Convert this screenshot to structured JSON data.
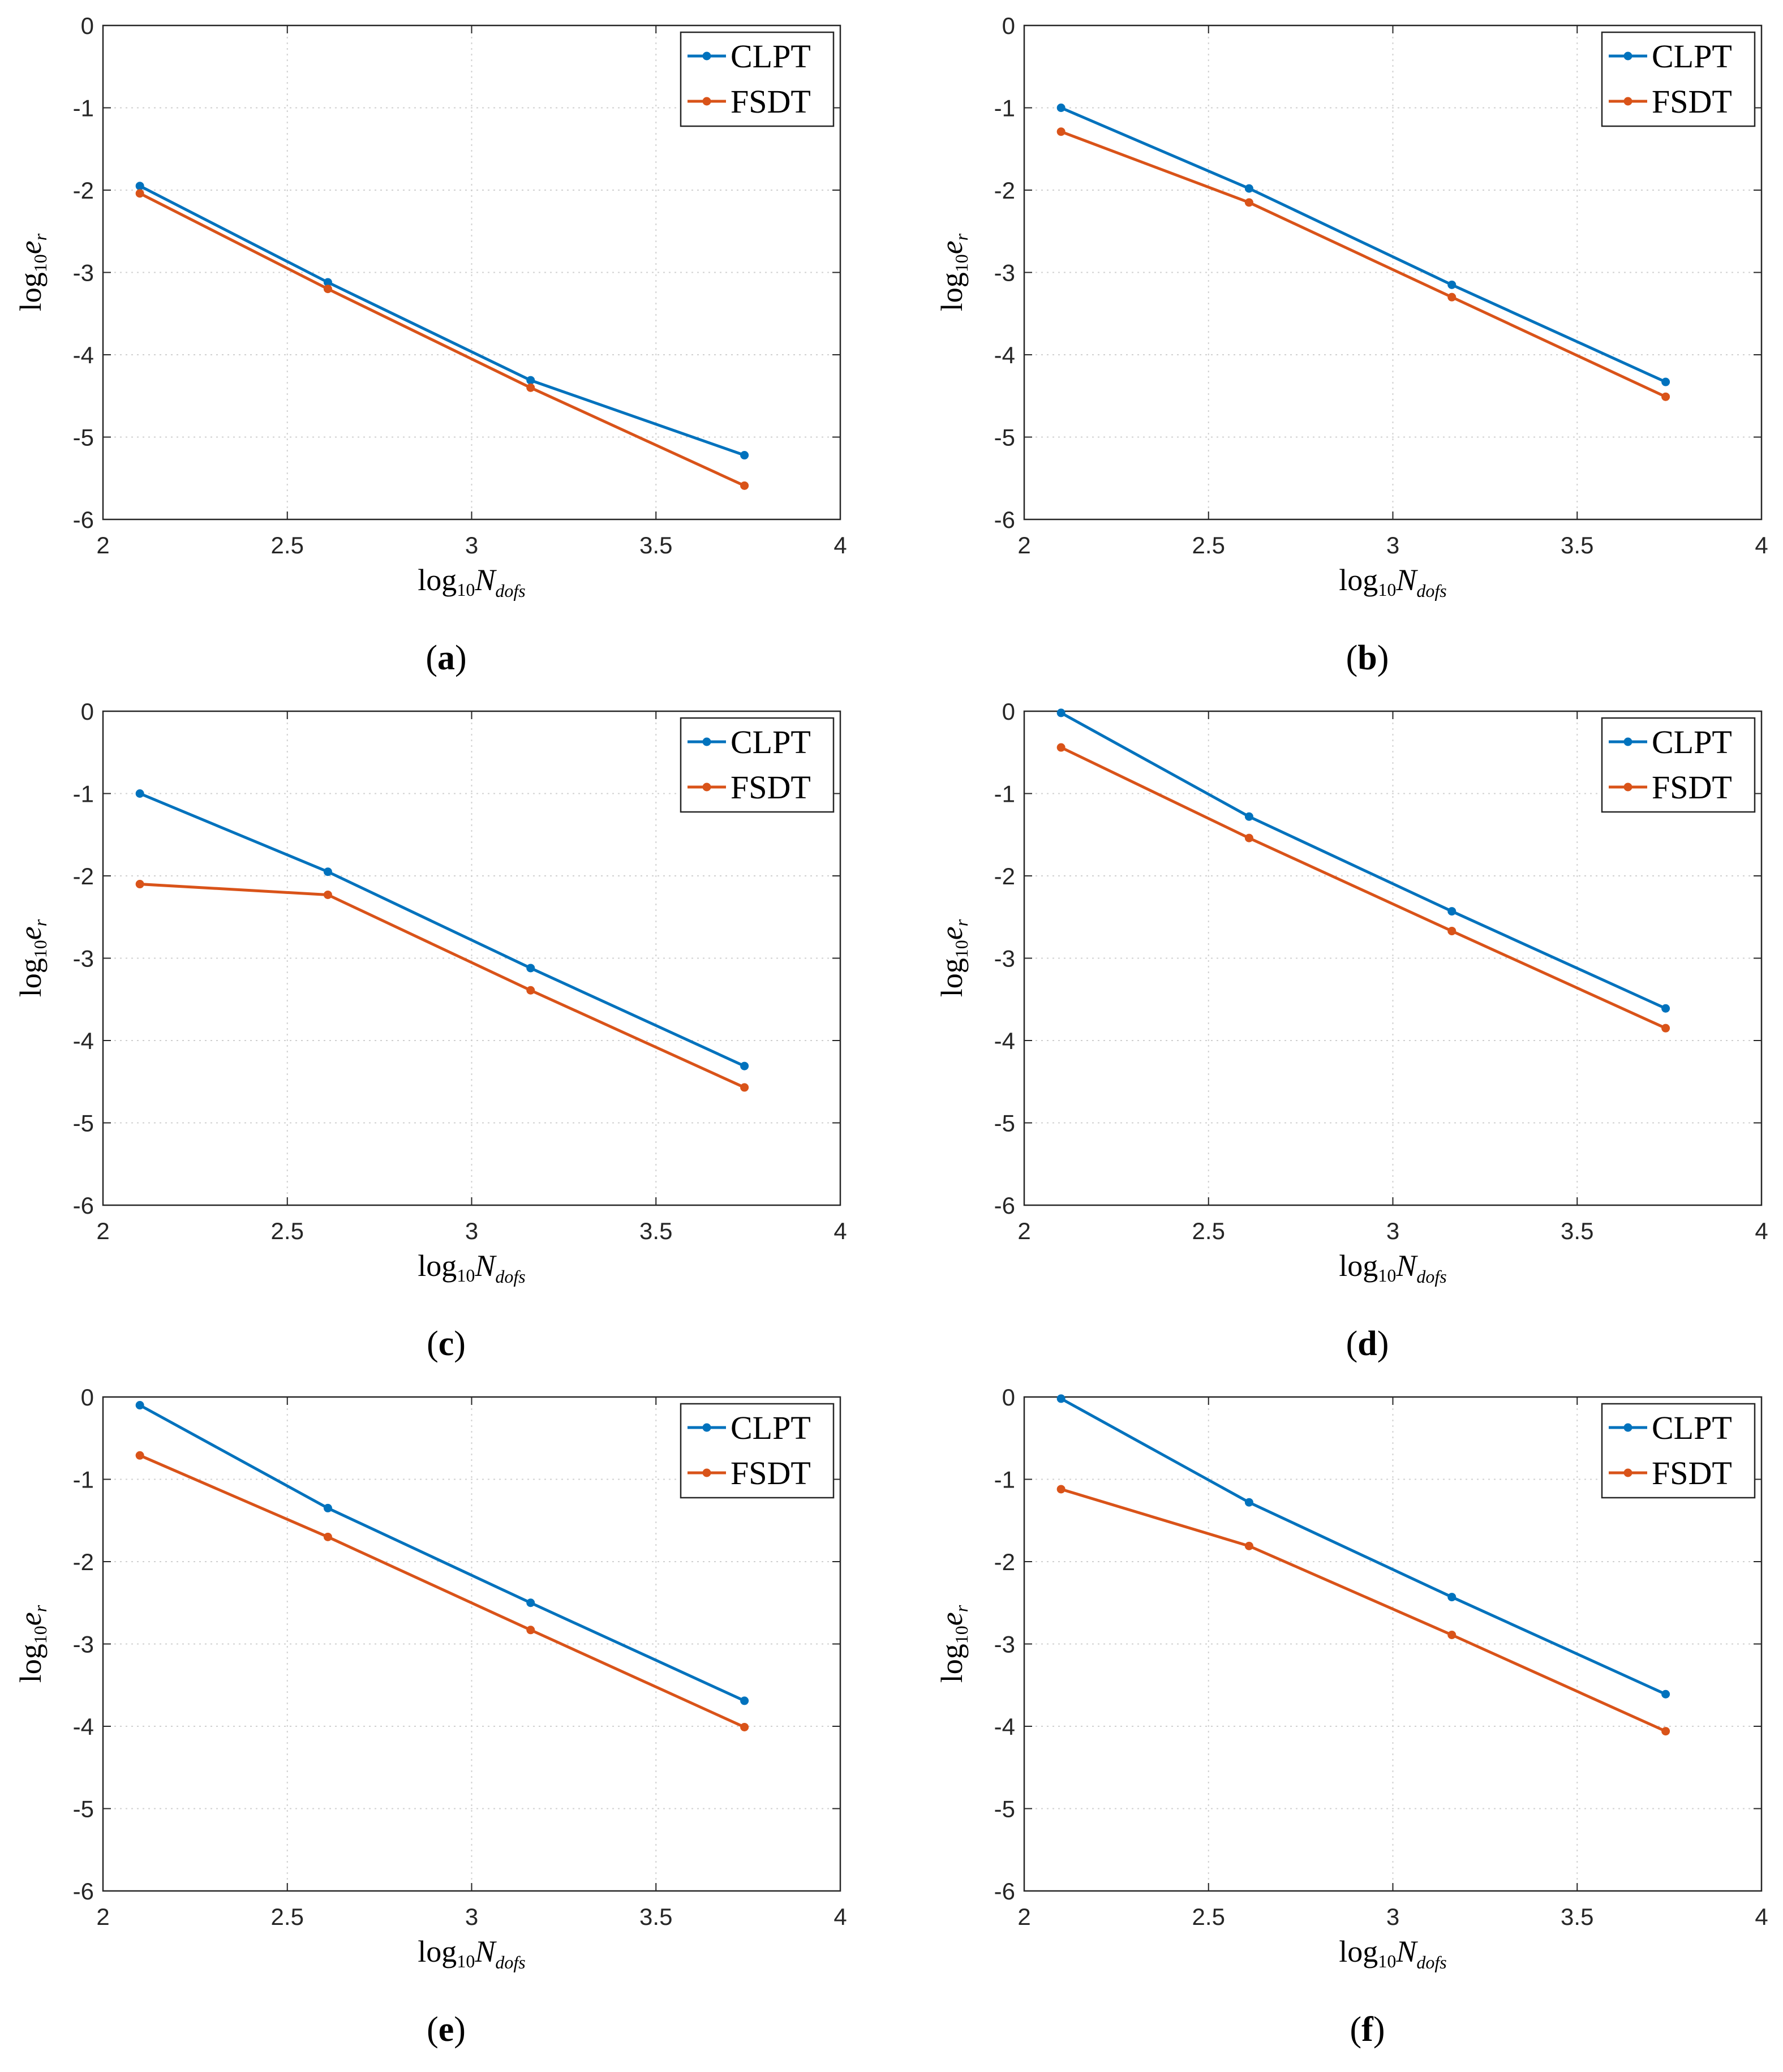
{
  "chart_data": [
    {
      "type": "line",
      "panel": "a",
      "xlabel": "log10 N_dofs",
      "ylabel": "log10 e_r",
      "xlim": [
        2,
        4
      ],
      "ylim": [
        -6,
        0
      ],
      "xticks": [
        "2",
        "2.5",
        "3",
        "3.5",
        "4"
      ],
      "yticks": [
        "0",
        "-1",
        "-2",
        "-3",
        "-4",
        "-5",
        "-6"
      ],
      "grid": true,
      "legend": "top-right",
      "x": [
        2.1,
        2.61,
        3.16,
        3.74
      ],
      "series": [
        {
          "name": "CLPT",
          "color": "#0072BD",
          "values": [
            -1.95,
            -3.12,
            -4.31,
            -5.22
          ]
        },
        {
          "name": "FSDT",
          "color": "#D95319",
          "values": [
            -2.04,
            -3.2,
            -4.4,
            -5.59
          ]
        }
      ]
    },
    {
      "type": "line",
      "panel": "b",
      "xlabel": "log10 N_dofs",
      "ylabel": "log10 e_r",
      "xlim": [
        2,
        4
      ],
      "ylim": [
        -6,
        0
      ],
      "xticks": [
        "2",
        "2.5",
        "3",
        "3.5",
        "4"
      ],
      "yticks": [
        "0",
        "-1",
        "-2",
        "-3",
        "-4",
        "-5",
        "-6"
      ],
      "grid": true,
      "legend": "top-right",
      "x": [
        2.1,
        2.61,
        3.16,
        3.74
      ],
      "series": [
        {
          "name": "CLPT",
          "color": "#0072BD",
          "values": [
            -1.0,
            -1.98,
            -3.15,
            -4.33
          ]
        },
        {
          "name": "FSDT",
          "color": "#D95319",
          "values": [
            -1.29,
            -2.15,
            -3.3,
            -4.51
          ]
        }
      ]
    },
    {
      "type": "line",
      "panel": "c",
      "xlabel": "log10 N_dofs",
      "ylabel": "log10 e_r",
      "xlim": [
        2,
        4
      ],
      "ylim": [
        -6,
        0
      ],
      "xticks": [
        "2",
        "2.5",
        "3",
        "3.5",
        "4"
      ],
      "yticks": [
        "0",
        "-1",
        "-2",
        "-3",
        "-4",
        "-5",
        "-6"
      ],
      "grid": true,
      "legend": "top-right",
      "x": [
        2.1,
        2.61,
        3.16,
        3.74
      ],
      "series": [
        {
          "name": "CLPT",
          "color": "#0072BD",
          "values": [
            -1.0,
            -1.95,
            -3.12,
            -4.31
          ]
        },
        {
          "name": "FSDT",
          "color": "#D95319",
          "values": [
            -2.1,
            -2.23,
            -3.39,
            -4.57
          ]
        }
      ]
    },
    {
      "type": "line",
      "panel": "d",
      "xlabel": "log10 N_dofs",
      "ylabel": "log10 e_r",
      "xlim": [
        2,
        4
      ],
      "ylim": [
        -6,
        0
      ],
      "xticks": [
        "2",
        "2.5",
        "3",
        "3.5",
        "4"
      ],
      "yticks": [
        "0",
        "-1",
        "-2",
        "-3",
        "-4",
        "-5",
        "-6"
      ],
      "grid": true,
      "legend": "top-right",
      "x": [
        2.1,
        2.61,
        3.16,
        3.74
      ],
      "series": [
        {
          "name": "CLPT",
          "color": "#0072BD",
          "values": [
            -0.02,
            -1.28,
            -2.43,
            -3.61
          ]
        },
        {
          "name": "FSDT",
          "color": "#D95319",
          "values": [
            -0.44,
            -1.54,
            -2.67,
            -3.85
          ]
        }
      ]
    },
    {
      "type": "line",
      "panel": "e",
      "xlabel": "log10 N_dofs",
      "ylabel": "log10 e_r",
      "xlim": [
        2,
        4
      ],
      "ylim": [
        -6,
        0
      ],
      "xticks": [
        "2",
        "2.5",
        "3",
        "3.5",
        "4"
      ],
      "yticks": [
        "0",
        "-1",
        "-2",
        "-3",
        "-4",
        "-5",
        "-6"
      ],
      "grid": true,
      "legend": "top-right",
      "x": [
        2.1,
        2.61,
        3.16,
        3.74
      ],
      "series": [
        {
          "name": "CLPT",
          "color": "#0072BD",
          "values": [
            -0.1,
            -1.35,
            -2.5,
            -3.69
          ]
        },
        {
          "name": "FSDT",
          "color": "#D95319",
          "values": [
            -0.71,
            -1.7,
            -2.83,
            -4.01
          ]
        }
      ]
    },
    {
      "type": "line",
      "panel": "f",
      "xlabel": "log10 N_dofs",
      "ylabel": "log10 e_r",
      "xlim": [
        2,
        4
      ],
      "ylim": [
        -6,
        0
      ],
      "xticks": [
        "2",
        "2.5",
        "3",
        "3.5",
        "4"
      ],
      "yticks": [
        "0",
        "-1",
        "-2",
        "-3",
        "-4",
        "-5",
        "-6"
      ],
      "grid": true,
      "legend": "top-right",
      "x": [
        2.1,
        2.61,
        3.16,
        3.74
      ],
      "series": [
        {
          "name": "CLPT",
          "color": "#0072BD",
          "values": [
            -0.02,
            -1.28,
            -2.43,
            -3.61
          ]
        },
        {
          "name": "FSDT",
          "color": "#D95319",
          "values": [
            -1.12,
            -1.81,
            -2.89,
            -4.06
          ]
        }
      ]
    }
  ]
}
